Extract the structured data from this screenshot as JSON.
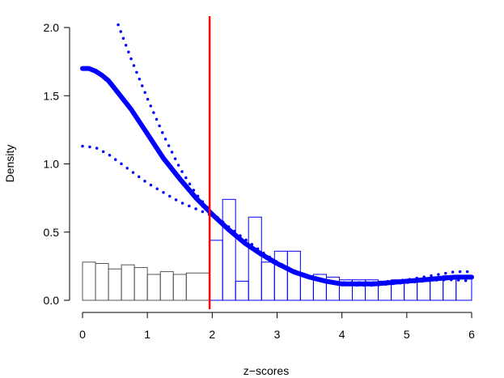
{
  "chart_data": {
    "type": "histogram",
    "title": "",
    "xlabel": "z−scores",
    "ylabel": "Density",
    "xlim": [
      0,
      6
    ],
    "ylim": [
      0,
      2.0
    ],
    "x_ticks": [
      0,
      1,
      2,
      3,
      4,
      5,
      6
    ],
    "x_tick_labels": [
      "0",
      "1",
      "2",
      "3",
      "4",
      "5",
      "6"
    ],
    "y_ticks": [
      0,
      0.5,
      1.0,
      1.5,
      2.0
    ],
    "y_tick_labels": [
      "0.0",
      "0.5",
      "1.0",
      "1.5",
      "2.0"
    ],
    "grid": false,
    "threshold": {
      "x": 1.96,
      "color": "#ff0000"
    },
    "bin_width": 0.2,
    "histogram_below_threshold": {
      "color": "#555555",
      "bins": [
        {
          "x0": 0.0,
          "x1": 0.2,
          "density": 0.28
        },
        {
          "x0": 0.2,
          "x1": 0.4,
          "density": 0.27
        },
        {
          "x0": 0.4,
          "x1": 0.6,
          "density": 0.23
        },
        {
          "x0": 0.6,
          "x1": 0.8,
          "density": 0.26
        },
        {
          "x0": 0.8,
          "x1": 1.0,
          "density": 0.24
        },
        {
          "x0": 1.0,
          "x1": 1.2,
          "density": 0.19
        },
        {
          "x0": 1.2,
          "x1": 1.4,
          "density": 0.21
        },
        {
          "x0": 1.4,
          "x1": 1.6,
          "density": 0.19
        },
        {
          "x0": 1.6,
          "x1": 1.96,
          "density": 0.2
        }
      ]
    },
    "histogram_above_threshold": {
      "color": "#0000ff",
      "bins": [
        {
          "x0": 1.96,
          "x1": 2.16,
          "density": 0.44
        },
        {
          "x0": 2.16,
          "x1": 2.36,
          "density": 0.74
        },
        {
          "x0": 2.36,
          "x1": 2.56,
          "density": 0.14
        },
        {
          "x0": 2.56,
          "x1": 2.76,
          "density": 0.61
        },
        {
          "x0": 2.76,
          "x1": 2.96,
          "density": 0.28
        },
        {
          "x0": 2.96,
          "x1": 3.16,
          "density": 0.36
        },
        {
          "x0": 3.16,
          "x1": 3.36,
          "density": 0.36
        },
        {
          "x0": 3.36,
          "x1": 3.56,
          "density": 0.18
        },
        {
          "x0": 3.56,
          "x1": 3.76,
          "density": 0.19
        },
        {
          "x0": 3.76,
          "x1": 3.96,
          "density": 0.17
        },
        {
          "x0": 3.96,
          "x1": 4.16,
          "density": 0.15
        },
        {
          "x0": 4.16,
          "x1": 4.36,
          "density": 0.15
        },
        {
          "x0": 4.36,
          "x1": 4.56,
          "density": 0.15
        },
        {
          "x0": 4.56,
          "x1": 4.76,
          "density": 0.14
        },
        {
          "x0": 4.76,
          "x1": 4.96,
          "density": 0.15
        },
        {
          "x0": 4.96,
          "x1": 5.16,
          "density": 0.15
        },
        {
          "x0": 5.16,
          "x1": 5.36,
          "density": 0.15
        },
        {
          "x0": 5.36,
          "x1": 5.56,
          "density": 0.16
        },
        {
          "x0": 5.56,
          "x1": 5.76,
          "density": 0.18
        },
        {
          "x0": 5.76,
          "x1": 6.0,
          "density": 0.16
        }
      ]
    },
    "series": [
      {
        "style": "solid",
        "color": "#0000ff",
        "x": [
          0.0,
          0.1,
          0.2,
          0.3,
          0.4,
          0.5,
          0.75,
          1.0,
          1.25,
          1.5,
          1.75,
          2.0,
          2.25,
          2.5,
          2.75,
          3.0,
          3.25,
          3.5,
          3.75,
          4.0,
          4.25,
          4.5,
          4.75,
          5.0,
          5.25,
          5.5,
          5.75,
          6.0
        ],
        "y": [
          1.7,
          1.7,
          1.68,
          1.65,
          1.61,
          1.55,
          1.4,
          1.22,
          1.04,
          0.89,
          0.75,
          0.63,
          0.52,
          0.42,
          0.34,
          0.27,
          0.21,
          0.17,
          0.14,
          0.12,
          0.12,
          0.12,
          0.13,
          0.14,
          0.15,
          0.16,
          0.17,
          0.17
        ]
      },
      {
        "style": "dotted",
        "color": "#0000ff",
        "x": [
          0.55,
          0.75,
          1.0,
          1.25,
          1.5,
          1.75,
          2.0,
          2.25,
          2.5,
          2.75,
          3.0,
          3.25,
          3.5,
          3.75,
          4.0,
          4.25,
          4.5,
          4.75,
          5.0,
          5.25,
          5.5,
          5.75,
          6.0
        ],
        "y": [
          2.02,
          1.77,
          1.48,
          1.21,
          0.97,
          0.78,
          0.64,
          0.54,
          0.45,
          0.36,
          0.28,
          0.22,
          0.17,
          0.14,
          0.13,
          0.13,
          0.13,
          0.14,
          0.15,
          0.17,
          0.19,
          0.21,
          0.21
        ]
      },
      {
        "style": "dotted",
        "color": "#0000ff",
        "x": [
          0.0,
          0.2,
          0.4,
          0.6,
          0.8,
          1.0,
          1.25,
          1.5,
          1.75,
          2.0,
          2.25,
          2.5,
          2.75,
          3.0,
          3.25,
          3.5,
          3.75,
          4.0,
          4.25,
          4.5,
          4.75,
          5.0,
          5.25,
          5.5,
          5.75,
          6.0
        ],
        "y": [
          1.13,
          1.12,
          1.07,
          1.0,
          0.93,
          0.86,
          0.79,
          0.72,
          0.67,
          0.62,
          0.52,
          0.42,
          0.33,
          0.26,
          0.21,
          0.17,
          0.14,
          0.12,
          0.11,
          0.11,
          0.12,
          0.13,
          0.14,
          0.15,
          0.15,
          0.14
        ]
      }
    ]
  }
}
